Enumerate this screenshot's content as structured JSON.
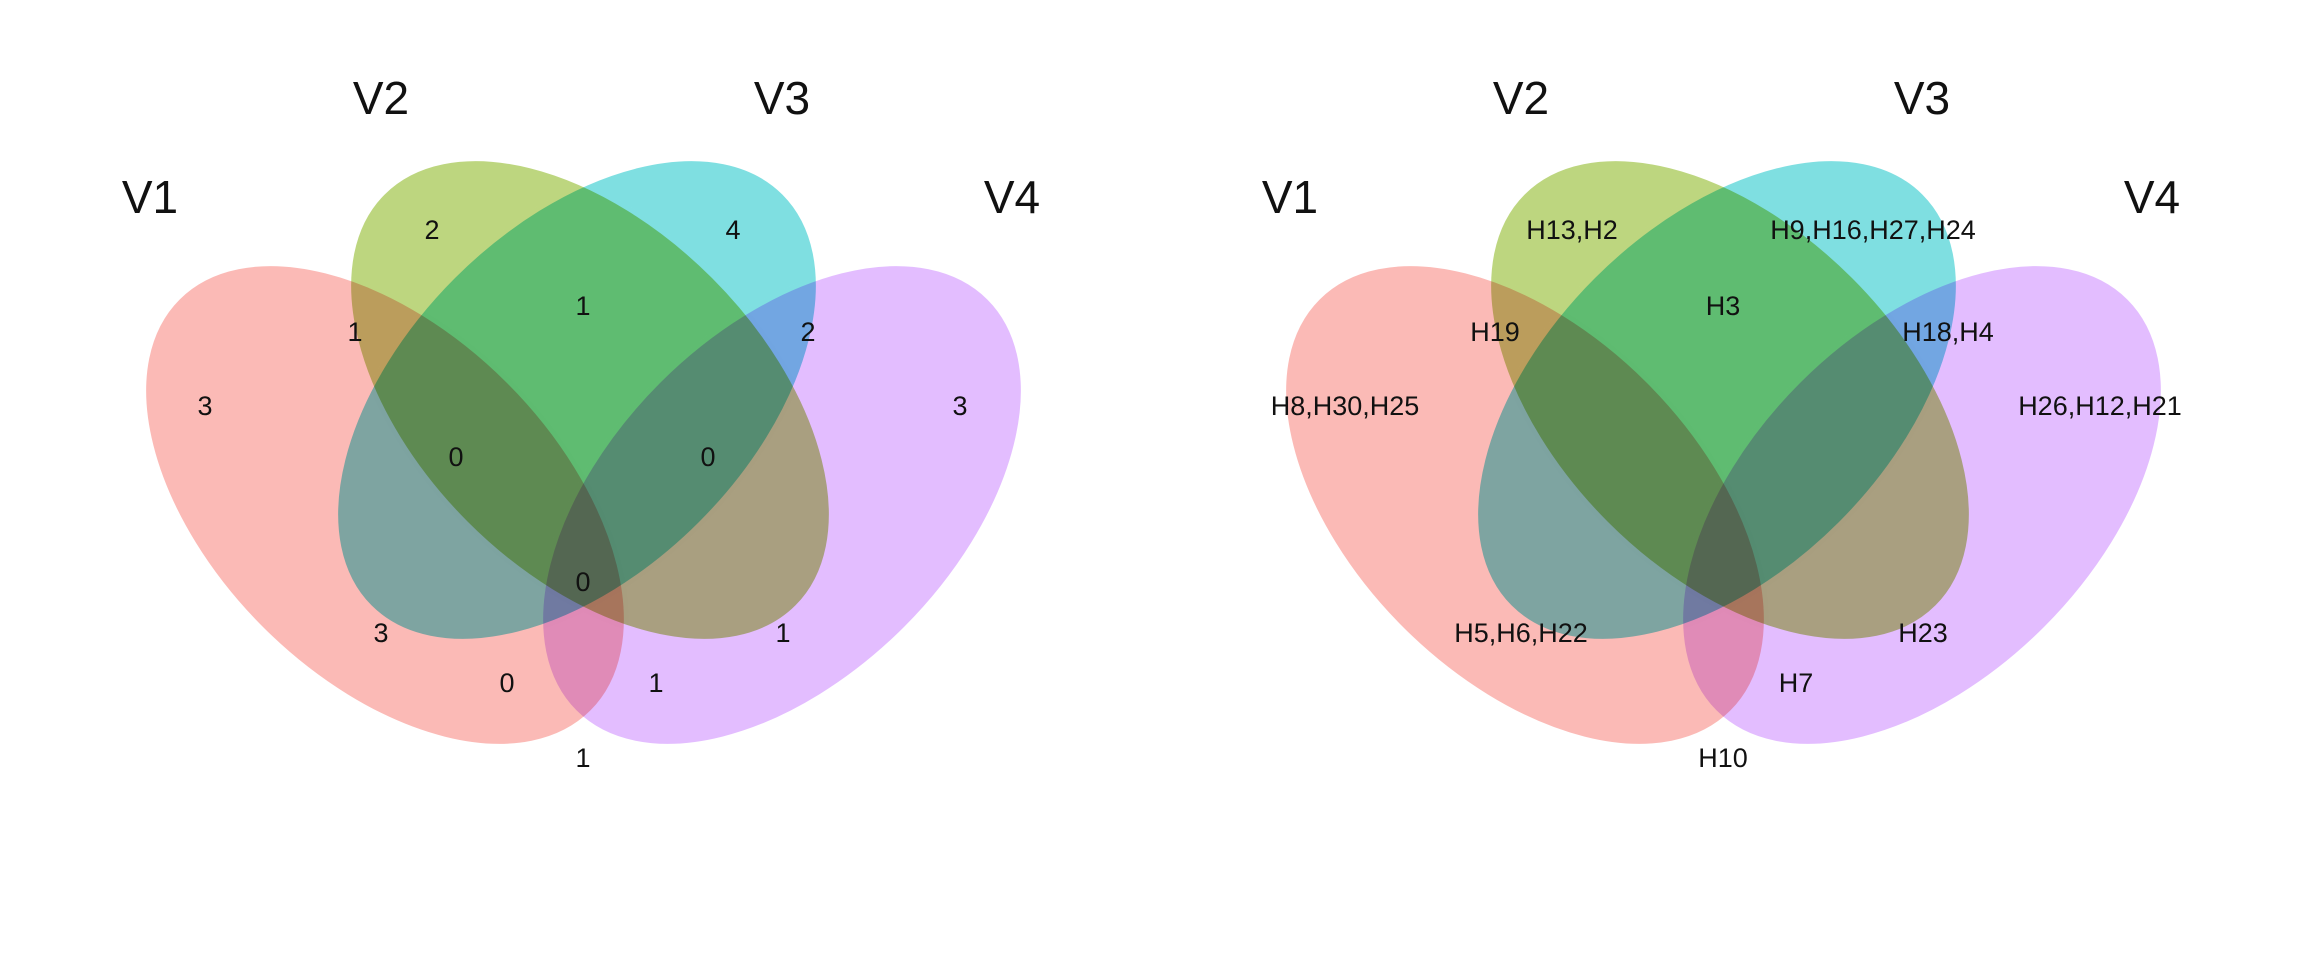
{
  "chart_data": [
    {
      "type": "venn",
      "sets": [
        {
          "name": "V1",
          "color": "#F8766D"
        },
        {
          "name": "V2",
          "color": "#7CAE00"
        },
        {
          "name": "V3",
          "color": "#00BFC4"
        },
        {
          "name": "V4",
          "color": "#C77CFF"
        }
      ],
      "regions": [
        {
          "sets": [
            "V1"
          ],
          "label": "3"
        },
        {
          "sets": [
            "V2"
          ],
          "label": "2"
        },
        {
          "sets": [
            "V3"
          ],
          "label": "4"
        },
        {
          "sets": [
            "V4"
          ],
          "label": "3"
        },
        {
          "sets": [
            "V1",
            "V2"
          ],
          "label": "1"
        },
        {
          "sets": [
            "V2",
            "V3"
          ],
          "label": "1"
        },
        {
          "sets": [
            "V3",
            "V4"
          ],
          "label": "2"
        },
        {
          "sets": [
            "V1",
            "V2",
            "V3"
          ],
          "label": "0"
        },
        {
          "sets": [
            "V2",
            "V3",
            "V4"
          ],
          "label": "0"
        },
        {
          "sets": [
            "V1",
            "V2",
            "V3",
            "V4"
          ],
          "label": "0"
        },
        {
          "sets": [
            "V1",
            "V3"
          ],
          "label": "3"
        },
        {
          "sets": [
            "V2",
            "V4"
          ],
          "label": "1"
        },
        {
          "sets": [
            "V1",
            "V3",
            "V4"
          ],
          "label": "0"
        },
        {
          "sets": [
            "V1",
            "V2",
            "V4"
          ],
          "label": "1"
        },
        {
          "sets": [
            "V1",
            "V4"
          ],
          "label": "1"
        }
      ]
    },
    {
      "type": "venn",
      "sets": [
        {
          "name": "V1",
          "color": "#F8766D"
        },
        {
          "name": "V2",
          "color": "#7CAE00"
        },
        {
          "name": "V3",
          "color": "#00BFC4"
        },
        {
          "name": "V4",
          "color": "#C77CFF"
        }
      ],
      "regions": [
        {
          "sets": [
            "V1"
          ],
          "label": "H8,H30,H25"
        },
        {
          "sets": [
            "V2"
          ],
          "label": "H13,H2"
        },
        {
          "sets": [
            "V3"
          ],
          "label": "H9,H16,H27,H24"
        },
        {
          "sets": [
            "V4"
          ],
          "label": "H26,H12,H21"
        },
        {
          "sets": [
            "V1",
            "V2"
          ],
          "label": "H19"
        },
        {
          "sets": [
            "V2",
            "V3"
          ],
          "label": "H3"
        },
        {
          "sets": [
            "V3",
            "V4"
          ],
          "label": "H18,H4"
        },
        {
          "sets": [
            "V1",
            "V2",
            "V3"
          ],
          "label": ""
        },
        {
          "sets": [
            "V2",
            "V3",
            "V4"
          ],
          "label": ""
        },
        {
          "sets": [
            "V1",
            "V2",
            "V3",
            "V4"
          ],
          "label": ""
        },
        {
          "sets": [
            "V1",
            "V3"
          ],
          "label": "H5,H6,H22"
        },
        {
          "sets": [
            "V2",
            "V4"
          ],
          "label": "H23"
        },
        {
          "sets": [
            "V1",
            "V3",
            "V4"
          ],
          "label": ""
        },
        {
          "sets": [
            "V1",
            "V2",
            "V4"
          ],
          "label": "H7"
        },
        {
          "sets": [
            "V1",
            "V4"
          ],
          "label": "H10"
        }
      ]
    }
  ]
}
